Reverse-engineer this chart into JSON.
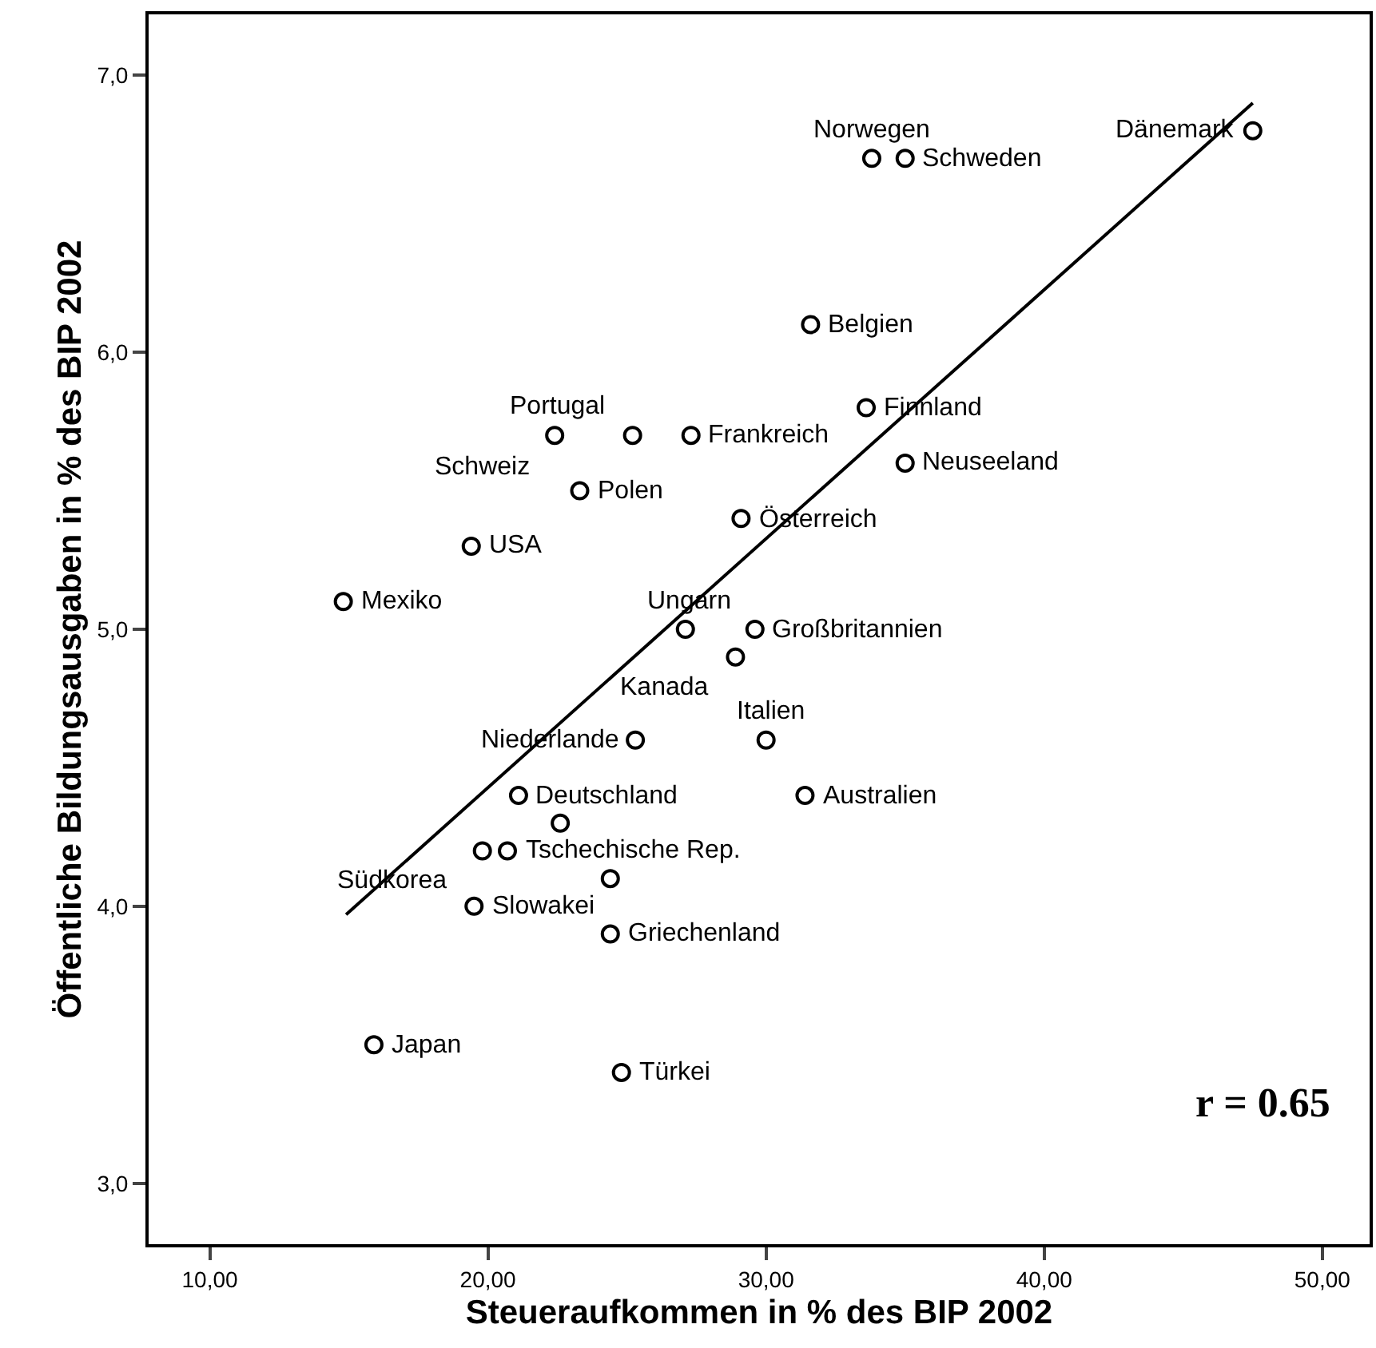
{
  "chart_data": {
    "type": "scatter",
    "xlabel": "Steueraufkommen in % des BIP 2002",
    "ylabel": "Öffentliche Bildungsausgaben in % des BIP 2002",
    "xlim": [
      7.8,
      51.7
    ],
    "ylim": [
      2.78,
      7.22
    ],
    "xticks": [
      {
        "value": 10,
        "label": "10,00"
      },
      {
        "value": 20,
        "label": "20,00"
      },
      {
        "value": 30,
        "label": "30,00"
      },
      {
        "value": 40,
        "label": "40,00"
      },
      {
        "value": 50,
        "label": "50,00"
      }
    ],
    "yticks": [
      {
        "value": 3,
        "label": "3,0"
      },
      {
        "value": 4,
        "label": "4,0"
      },
      {
        "value": 5,
        "label": "5,0"
      },
      {
        "value": 6,
        "label": "6,0"
      },
      {
        "value": 7,
        "label": "7,0"
      }
    ],
    "series": [
      {
        "marker": "circle",
        "color": "#000000",
        "x": [
          47.5,
          33.8,
          35.0,
          31.6,
          33.6,
          22.4,
          25.2,
          27.3,
          35.0,
          23.3,
          29.1,
          19.4,
          14.8,
          27.1,
          29.6,
          28.9,
          30.0,
          25.3,
          21.1,
          31.4,
          22.6,
          19.8,
          20.7,
          24.4,
          19.5,
          24.4,
          15.9,
          24.8
        ],
        "values": [
          6.8,
          6.7,
          6.7,
          6.1,
          5.8,
          5.7,
          5.7,
          5.7,
          5.6,
          5.5,
          5.4,
          5.3,
          5.1,
          5.0,
          5.0,
          4.9,
          4.6,
          4.6,
          4.4,
          4.4,
          4.3,
          4.2,
          4.2,
          4.1,
          4.0,
          3.9,
          3.5,
          3.4
        ]
      },
      {
        "type": "line",
        "line_style": "solid",
        "color": "#000000",
        "x": [
          14.9,
          47.5
        ],
        "values": [
          3.97,
          6.9
        ]
      }
    ],
    "annotations": [
      {
        "text": "Dänemark",
        "x": 47.5,
        "y": 6.8
      },
      {
        "text": "Norwegen",
        "x": 33.8,
        "y": 6.7
      },
      {
        "text": "Schweden",
        "x": 35.0,
        "y": 6.7
      },
      {
        "text": "Belgien",
        "x": 31.6,
        "y": 6.1
      },
      {
        "text": "Finnland",
        "x": 33.6,
        "y": 5.8
      },
      {
        "text": "Portugal",
        "x": 22.4,
        "y": 5.7
      },
      "Schweiz",
      {
        "text": "Frankreich",
        "x": 27.3,
        "y": 5.7
      },
      {
        "text": "Neuseeland",
        "x": 35.0,
        "y": 5.6
      },
      {
        "text": "Polen",
        "x": 23.3,
        "y": 5.5
      },
      {
        "text": "Österreich",
        "x": 29.1,
        "y": 5.4
      },
      {
        "text": "USA",
        "x": 19.4,
        "y": 5.3
      },
      {
        "text": "Mexiko",
        "x": 14.8,
        "y": 5.1
      },
      {
        "text": "Ungarn",
        "x": 27.1,
        "y": 5.0
      },
      {
        "text": "Großbritannien",
        "x": 29.6,
        "y": 5.0
      },
      {
        "text": "Kanada",
        "x": 28.9,
        "y": 4.9
      },
      {
        "text": "Italien",
        "x": 30.0,
        "y": 4.6
      },
      {
        "text": "Niederlande",
        "x": 25.3,
        "y": 4.6
      },
      {
        "text": "Deutschland",
        "x": 21.1,
        "y": 4.4
      },
      {
        "text": "Australien",
        "x": 31.4,
        "y": 4.4
      },
      {
        "text": "Südkorea",
        "x": 19.8,
        "y": 4.2
      },
      {
        "text": "Tschechische Rep.",
        "x": 20.7,
        "y": 4.2
      },
      {
        "text": "Slowakei",
        "x": 19.5,
        "y": 4.0
      },
      {
        "text": "Griechenland",
        "x": 24.4,
        "y": 3.9
      },
      {
        "text": "Japan",
        "x": 15.9,
        "y": 3.5
      },
      {
        "text": "Türkei",
        "x": 24.8,
        "y": 3.4
      },
      "r = 0.65"
    ]
  }
}
